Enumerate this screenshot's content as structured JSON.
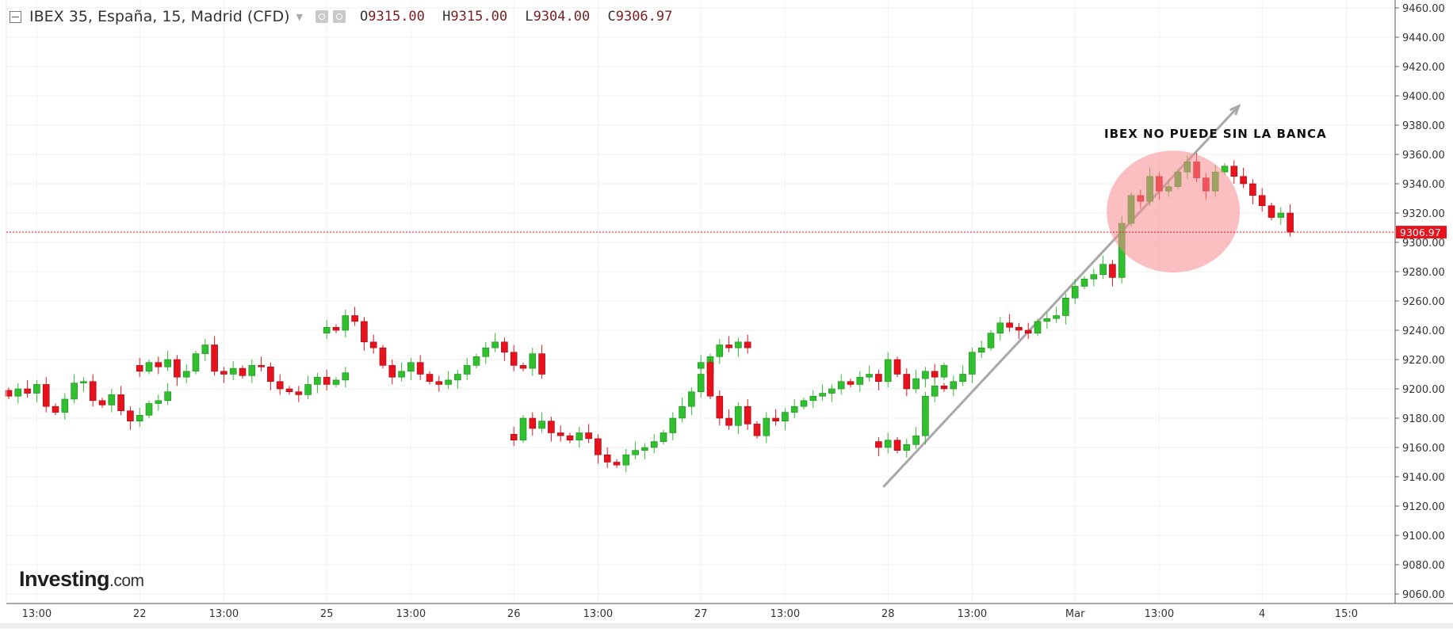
{
  "header": {
    "symbol": "IBEX 35, España, 15, Madrid (CFD)",
    "open_label": "O",
    "open": "9315.00",
    "high_label": "H",
    "high": "9315.00",
    "low_label": "L",
    "low": "9304.00",
    "close_label": "C",
    "close": "9306.97"
  },
  "logo": {
    "brand": "Investing",
    "suffix": ".com"
  },
  "annotation": {
    "text": "IBEX NO PUEDE SIN LA BANCA"
  },
  "colors": {
    "up": "#2fbf2f",
    "down": "#e8121d",
    "grid": "#eef0f2",
    "price_line": "#e8121d",
    "trendline": "#a8a8a8",
    "highlight": "#f78b8e"
  },
  "chart_data": {
    "type": "candlestick",
    "title": "IBEX 35, España, 15, Madrid (CFD)",
    "interval": "15",
    "y_ticks": [
      9060,
      9080,
      9100,
      9120,
      9140,
      9160,
      9180,
      9200,
      9220,
      9240,
      9260,
      9280,
      9300,
      9320,
      9340,
      9360,
      9380,
      9400,
      9420,
      9440,
      9460
    ],
    "y_tick_labels": [
      "9060.00",
      "9080.00",
      "9100.00",
      "9120.00",
      "9140.00",
      "9160.00",
      "9180.00",
      "9200.00",
      "9220.00",
      "9240.00",
      "9260.00",
      "9280.00",
      "9300.00",
      "9320.00",
      "9340.00",
      "9360.00",
      "9380.00",
      "9400.00",
      "9420.00",
      "9440.00",
      "9460.00"
    ],
    "ylim": [
      9052,
      9466
    ],
    "x_ticks": [
      {
        "label": "13:00",
        "t": 3
      },
      {
        "label": "22",
        "t": 14
      },
      {
        "label": "13:00",
        "t": 23
      },
      {
        "label": "25",
        "t": 34
      },
      {
        "label": "13:00",
        "t": 43
      },
      {
        "label": "26",
        "t": 54
      },
      {
        "label": "13:00",
        "t": 63
      },
      {
        "label": "27",
        "t": 74
      },
      {
        "label": "13:00",
        "t": 83
      },
      {
        "label": "28",
        "t": 94
      },
      {
        "label": "13:00",
        "t": 103
      },
      {
        "label": "Mar",
        "t": 114
      },
      {
        "label": "13:00",
        "t": 123
      },
      {
        "label": "4",
        "t": 134
      },
      {
        "label": "15:0",
        "t": 143
      }
    ],
    "last_price": 9306.97,
    "last_price_label": "9306.97",
    "trendline": [
      {
        "t": 93.5,
        "price": 9133
      },
      {
        "t": 131.5,
        "price": 9393
      }
    ],
    "highlight": {
      "t": 124.5,
      "price": 9321,
      "note": "red circle"
    },
    "sessions": [
      {
        "start": 0,
        "closes": [
          9195,
          9200,
          9197,
          9203,
          9188,
          9184,
          9193,
          9204,
          9205,
          9192,
          9189,
          9196,
          9185,
          9178,
          9182,
          9190,
          9192,
          9198
        ]
      },
      {
        "start": 14,
        "closes": [
          9212,
          9218,
          9215,
          9220,
          9208,
          9212,
          9224,
          9230,
          9212,
          9210,
          9214,
          9209,
          9216,
          9215,
          9205,
          9200,
          9198,
          9196,
          9203,
          9208,
          9203,
          9206,
          9211
        ]
      },
      {
        "start": 34,
        "closes": [
          9242,
          9240,
          9250,
          9246,
          9232,
          9228,
          9216,
          9208,
          9212,
          9218,
          9210,
          9205,
          9203,
          9206,
          9210,
          9216,
          9222,
          9228,
          9232,
          9225,
          9216,
          9214,
          9224,
          9210
        ]
      },
      {
        "start": 54,
        "closes": [
          9165,
          9180,
          9173,
          9178,
          9170,
          9168,
          9165,
          9170,
          9166,
          9155,
          9150,
          9148,
          9155,
          9158,
          9160,
          9164,
          9170,
          9180,
          9188,
          9198,
          9210,
          9222,
          9230,
          9228,
          9232,
          9228
        ]
      },
      {
        "start": 74,
        "closes": [
          9218,
          9195,
          9180,
          9175,
          9188,
          9176,
          9168,
          9180,
          9178,
          9184,
          9188,
          9192,
          9195,
          9197,
          9200,
          9205,
          9203,
          9208,
          9210,
          9205,
          9220,
          9210,
          9200,
          9207,
          9212,
          9208,
          9216
        ]
      },
      {
        "start": 93,
        "closes": [
          9160,
          9165,
          9158,
          9162,
          9168,
          9195,
          9202,
          9200,
          9205,
          9210,
          9225,
          9228,
          9238,
          9245,
          9242,
          9240,
          9238,
          9246,
          9248,
          9250,
          9262,
          9270,
          9275,
          9278,
          9285,
          9276,
          9313,
          9332,
          9328,
          9345,
          9335,
          9338,
          9348,
          9355,
          9344,
          9335,
          9348,
          9352,
          9345,
          9340,
          9332,
          9325,
          9317,
          9320,
          9307
        ]
      }
    ]
  }
}
